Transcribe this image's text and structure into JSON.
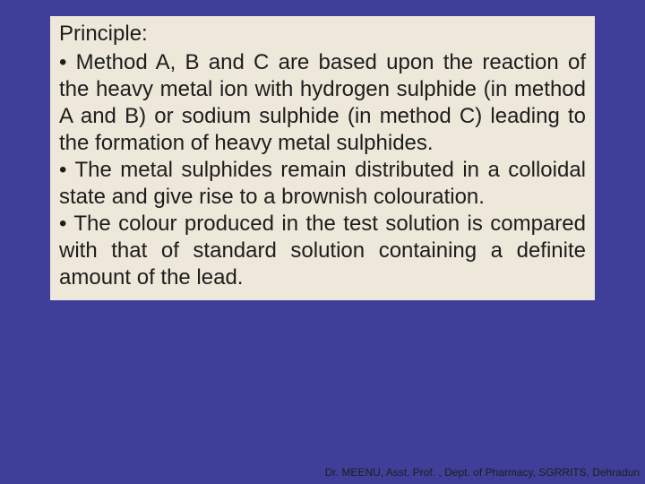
{
  "slide": {
    "background_color": "#3f3f99",
    "box_background_color": "#ede8d9",
    "text_color": "#1d1d1d",
    "heading": "Principle:",
    "bullets": [
      "• Method A, B and C are based upon the reaction of the heavy metal ion with hydrogen sulphide (in method A and B) or sodium sulphide (in method C) leading to the formation of heavy metal sulphides.",
      "• The metal sulphides remain distributed in a colloidal state and give rise to a brownish colouration.",
      "• The colour produced in the test solution is compared with that of standard solution containing a definite amount of the lead."
    ],
    "footer": "Dr. MEENU, Asst. Prof. , Dept. of Pharmacy, SGRRITS, Dehradun",
    "font_size_body": 24,
    "font_size_footer": 12
  }
}
